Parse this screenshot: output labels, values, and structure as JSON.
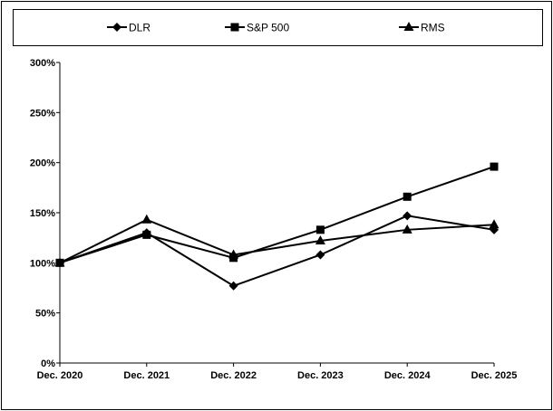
{
  "chart_data": {
    "type": "line",
    "categories": [
      "Dec. 2020",
      "Dec. 2021",
      "Dec. 2022",
      "Dec. 2023",
      "Dec. 2024",
      "Dec. 2025"
    ],
    "series": [
      {
        "name": "DLR",
        "marker": "diamond",
        "values": [
          100,
          130,
          77,
          108,
          147,
          133
        ]
      },
      {
        "name": "S&P 500",
        "marker": "square",
        "values": [
          100,
          128,
          105,
          133,
          166,
          196
        ]
      },
      {
        "name": "RMS",
        "marker": "triangle",
        "values": [
          100,
          143,
          108,
          122,
          133,
          138
        ]
      }
    ],
    "ylim": [
      0,
      300
    ],
    "yticks": [
      0,
      50,
      100,
      150,
      200,
      250,
      300
    ],
    "ytick_labels": [
      "0%",
      "50%",
      "100%",
      "150%",
      "200%",
      "250%",
      "300%"
    ],
    "grid": false,
    "legend_position": "top",
    "line_color": "#000000"
  }
}
